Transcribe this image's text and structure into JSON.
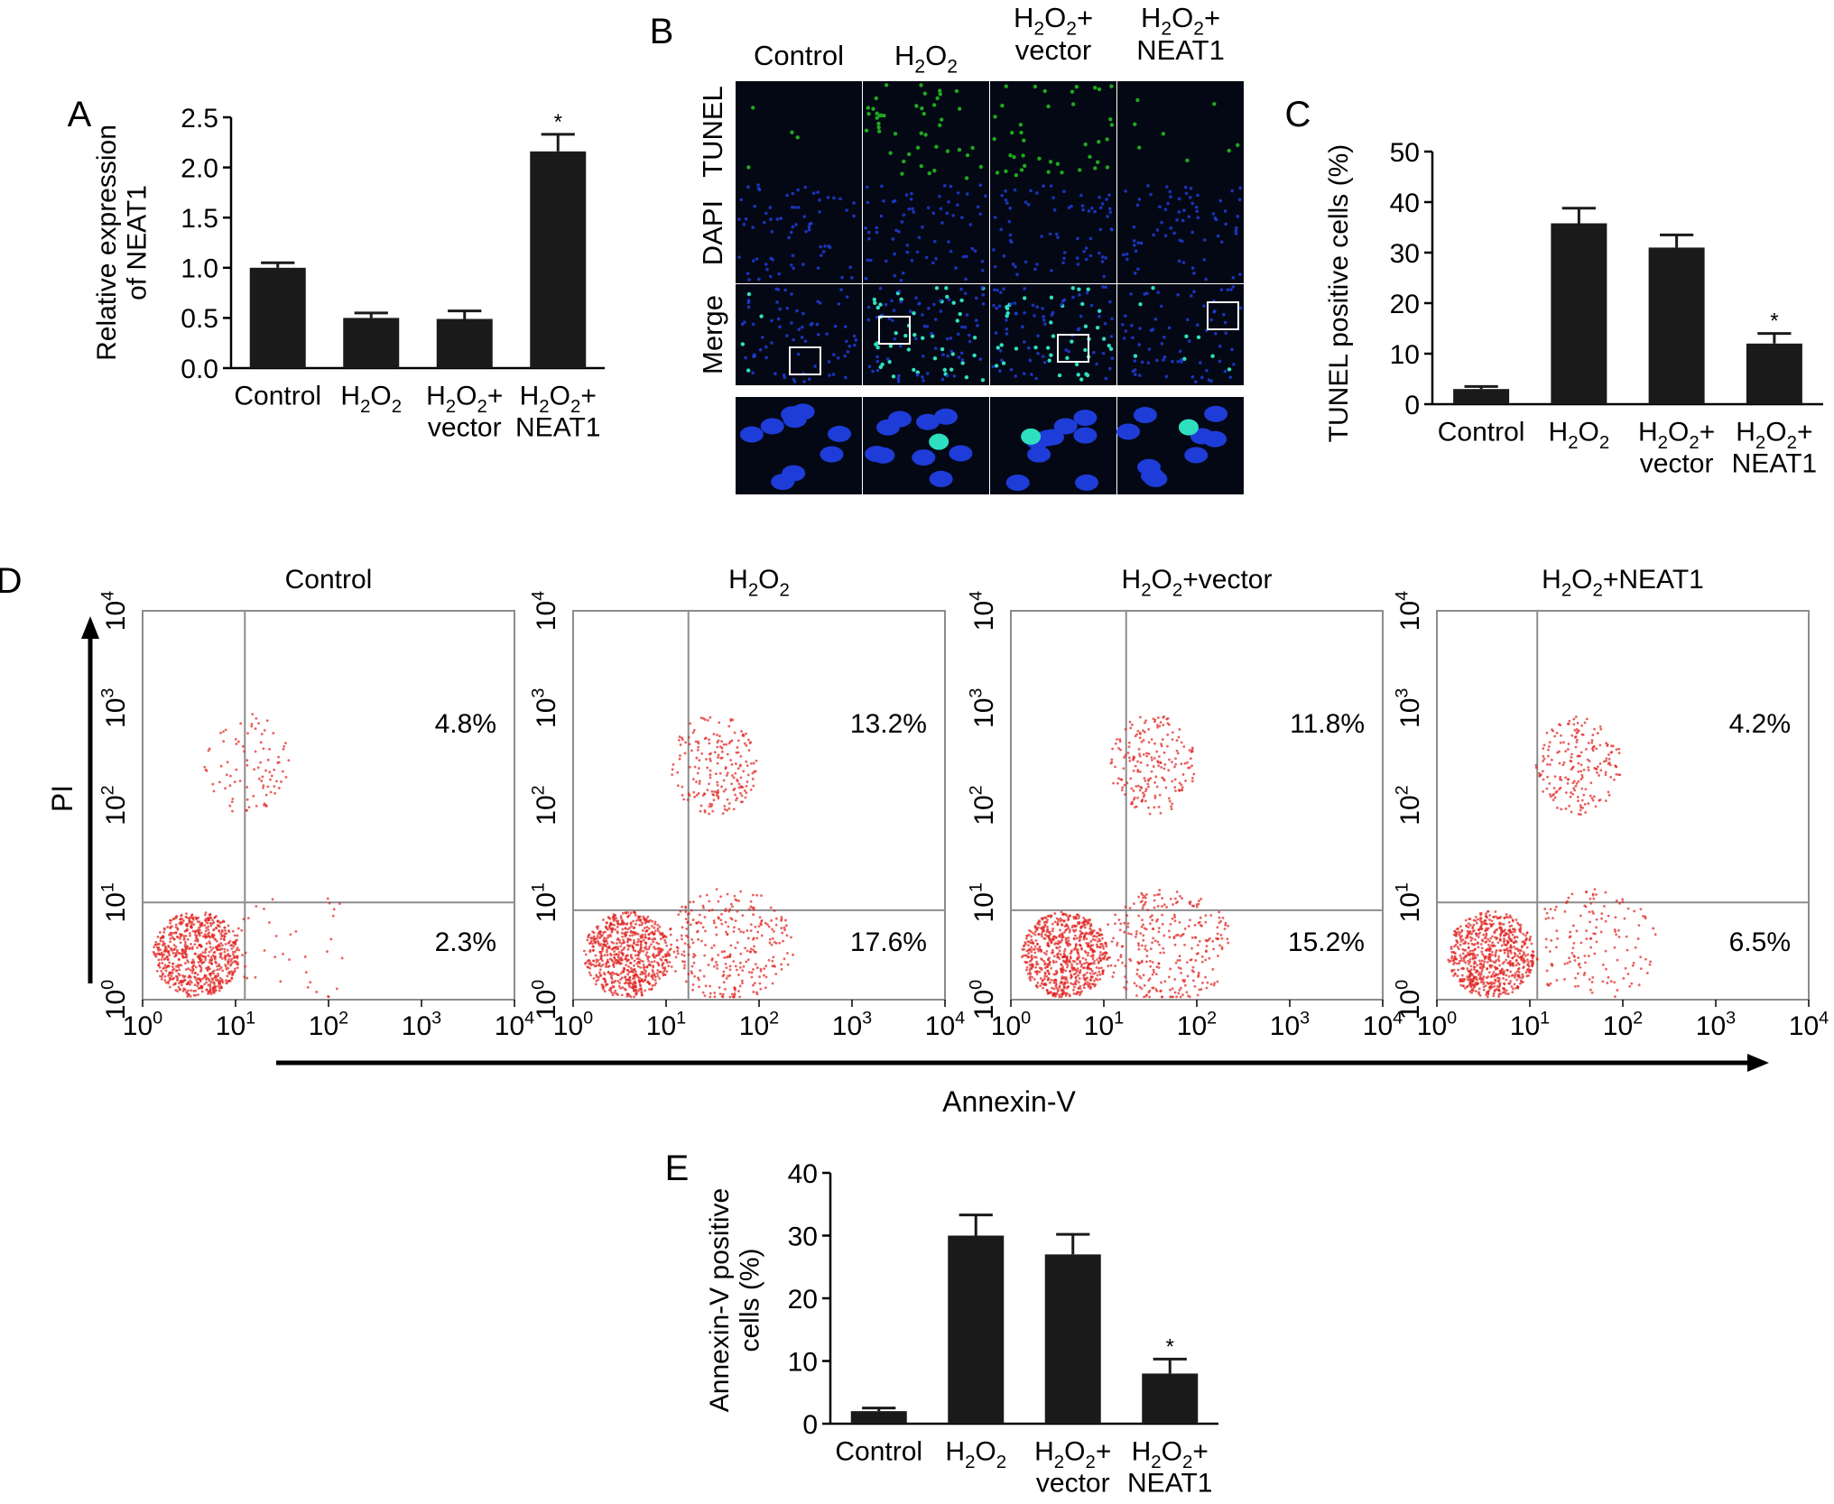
{
  "chart_data": [
    {
      "panel": "A",
      "type": "bar",
      "ylabel_lines": [
        "Relative expression",
        "of NEAT1"
      ],
      "ylim": [
        0,
        2.5
      ],
      "yticks": [
        "0.0",
        "0.5",
        "1.0",
        "1.5",
        "2.0",
        "2.5"
      ],
      "categories": [
        "Control",
        "H2O2",
        "H2O2+ vector",
        "H2O2+ NEAT1"
      ],
      "values": [
        1.0,
        0.5,
        0.49,
        2.16
      ],
      "errors": [
        0.05,
        0.05,
        0.08,
        0.17
      ],
      "significance": [
        "",
        "",
        "",
        "*"
      ]
    },
    {
      "panel": "C",
      "type": "bar",
      "ylabel_lines": [
        "TUNEL positive cells (%)"
      ],
      "ylim": [
        0,
        50
      ],
      "yticks": [
        "0",
        "10",
        "20",
        "30",
        "40",
        "50"
      ],
      "categories": [
        "Control",
        "H2O2",
        "H2O2+ vector",
        "H2O2+ NEAT1"
      ],
      "values": [
        3.0,
        35.8,
        31.0,
        12.0
      ],
      "errors": [
        0.5,
        3.0,
        2.5,
        2.0
      ],
      "significance": [
        "",
        "",
        "",
        "*"
      ]
    },
    {
      "panel": "E",
      "type": "bar",
      "ylabel_lines": [
        "Annexin-V positive",
        "cells (%)"
      ],
      "ylim": [
        0,
        40
      ],
      "yticks": [
        "0",
        "10",
        "20",
        "30",
        "40"
      ],
      "categories": [
        "Control",
        "H2O2",
        "H2O2+ vector",
        "H2O2+ NEAT1"
      ],
      "values": [
        2.0,
        30.0,
        27.0,
        8.0
      ],
      "errors": [
        0.5,
        3.3,
        3.2,
        2.3
      ],
      "significance": [
        "",
        "",
        "",
        "*"
      ]
    },
    {
      "panel": "D",
      "type": "scatter",
      "xlabel": "Annexin-V",
      "ylabel": "PI",
      "scale": "log",
      "ticks": [
        "10^0",
        "10^1",
        "10^2",
        "10^3",
        "10^4"
      ],
      "plots": [
        {
          "title": "Control",
          "upper_right_pct": "4.8%",
          "lower_right_pct": "2.3%"
        },
        {
          "title": "H2O2",
          "upper_right_pct": "13.2%",
          "lower_right_pct": "17.6%"
        },
        {
          "title": "H2O2+vector",
          "upper_right_pct": "11.8%",
          "lower_right_pct": "15.2%"
        },
        {
          "title": "H2O2+NEAT1",
          "upper_right_pct": "4.2%",
          "lower_right_pct": "6.5%"
        }
      ]
    }
  ],
  "micrographs": {
    "panel": "B",
    "columns": [
      "Control",
      "H2O2",
      "H2O2+ vector",
      "H2O2+ NEAT1"
    ],
    "rows": [
      "TUNEL",
      "DAPI",
      "Merge"
    ]
  },
  "panel_letters": [
    "A",
    "B",
    "C",
    "D",
    "E"
  ],
  "colors": {
    "bar": "#1a1a1a",
    "dot": "#e0201c",
    "tunel": "#1fa81f",
    "dapi": "#1e3cd8",
    "apoptotic": "#2fe0c0",
    "micro_bg": "#040814",
    "gate": "#8c8c8c"
  }
}
